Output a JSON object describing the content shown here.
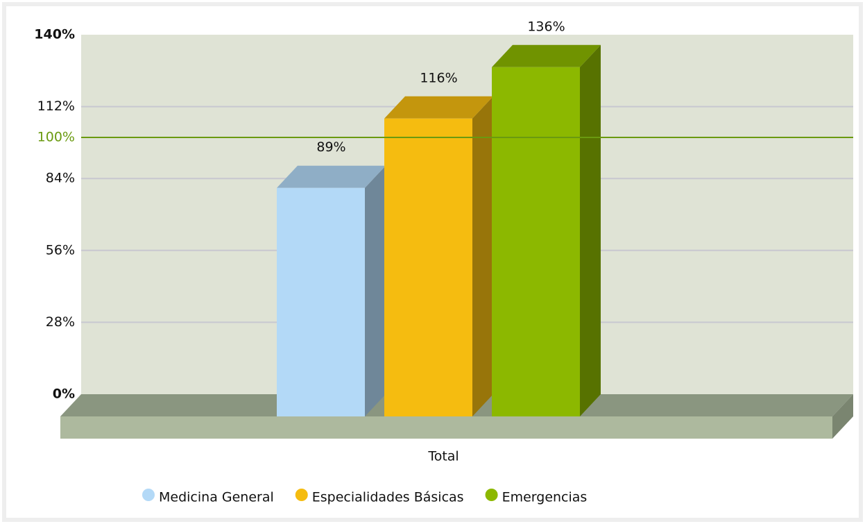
{
  "chart_data": {
    "type": "bar3d",
    "categories": [
      "Total"
    ],
    "series": [
      {
        "name": "Medicina General",
        "color": "#b3d9f7",
        "values": [
          89
        ],
        "value_labels": [
          "89%"
        ]
      },
      {
        "name": "Especialidades Básicas",
        "color": "#f5bc10",
        "values": [
          116
        ],
        "value_labels": [
          "116%"
        ]
      },
      {
        "name": "Emergencias",
        "color": "#8cb800",
        "values": [
          136
        ],
        "value_labels": [
          "136%"
        ]
      }
    ],
    "ylim": [
      0,
      140
    ],
    "yticks": [
      {
        "value": 0,
        "label": "0%"
      },
      {
        "value": 28,
        "label": "28%"
      },
      {
        "value": 56,
        "label": "56%"
      },
      {
        "value": 84,
        "label": "84%"
      },
      {
        "value": 112,
        "label": "112%"
      },
      {
        "value": 140,
        "label": "140%"
      }
    ],
    "target_line": {
      "value": 100,
      "label": "100%",
      "color": "#6a9a10"
    },
    "grid": true
  }
}
